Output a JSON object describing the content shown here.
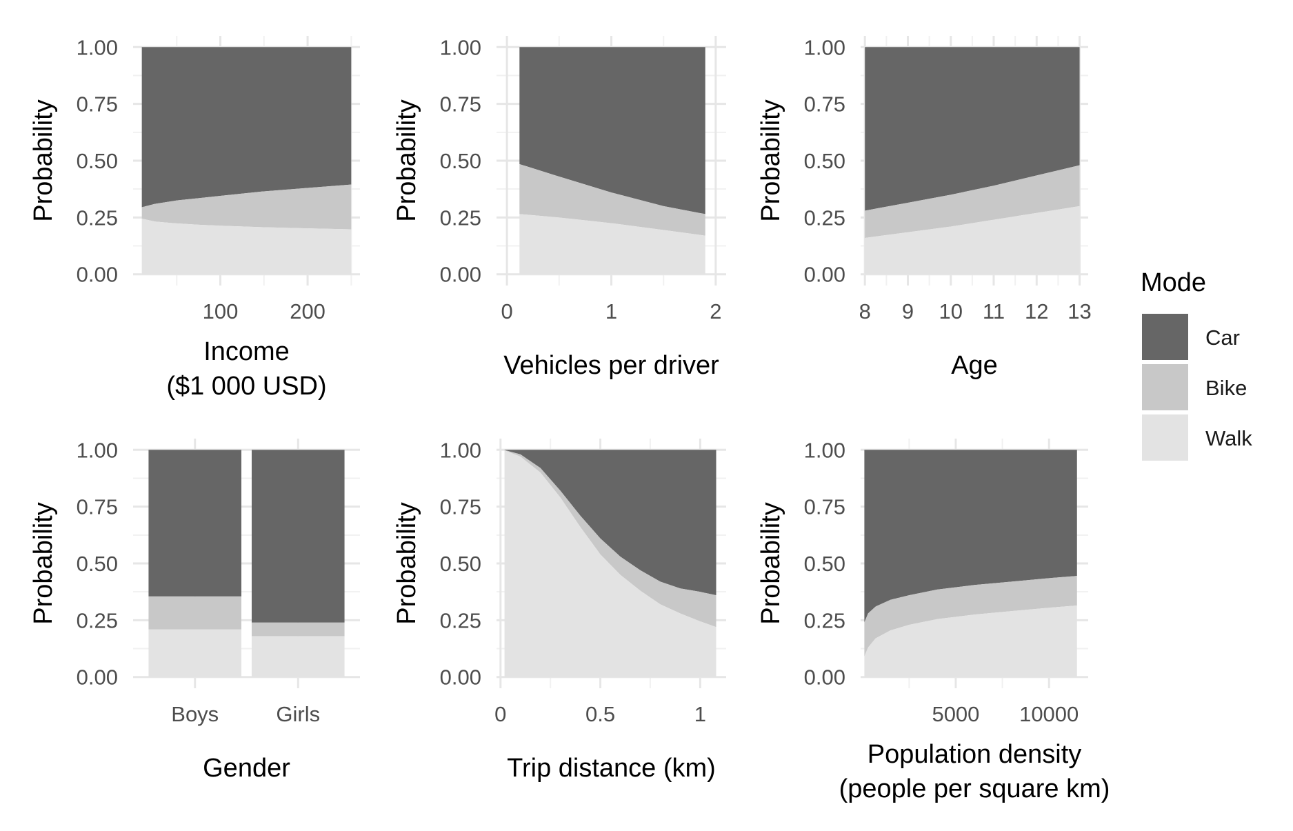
{
  "colors": {
    "Car": "#666666",
    "Bike": "#c8c8c8",
    "Walk": "#e3e3e3",
    "grid_major": "#e6e6e6",
    "grid_minor": "#f1f1f1"
  },
  "legend": {
    "title": "Mode",
    "items": [
      {
        "mode": "Car",
        "label": "Car"
      },
      {
        "mode": "Bike",
        "label": "Bike"
      },
      {
        "mode": "Walk",
        "label": "Walk"
      }
    ]
  },
  "chart_data": [
    {
      "id": "income",
      "type": "area",
      "ylabel": "Probability",
      "xlabel": [
        "Income",
        "($1 000 USD)"
      ],
      "xlim": [
        0,
        260
      ],
      "ylim": [
        0,
        1
      ],
      "x_ticks": [
        100,
        200
      ],
      "x_tick_labels": [
        "100",
        "200"
      ],
      "y_ticks": [
        0,
        0.25,
        0.5,
        0.75,
        1
      ],
      "y_tick_labels": [
        "0.00",
        "0.25",
        "0.50",
        "0.75",
        "1.00"
      ],
      "x": [
        10,
        25,
        50,
        75,
        100,
        150,
        200,
        250
      ],
      "walk": [
        0.245,
        0.232,
        0.224,
        0.218,
        0.214,
        0.207,
        0.202,
        0.198
      ],
      "walk_bike": [
        0.295,
        0.31,
        0.325,
        0.335,
        0.345,
        0.365,
        0.38,
        0.395
      ]
    },
    {
      "id": "vehicles",
      "type": "area",
      "ylabel": "Probability",
      "xlabel": [
        "Vehicles per driver"
      ],
      "xlim": [
        -0.1,
        2.1
      ],
      "ylim": [
        0,
        1
      ],
      "x_ticks": [
        0,
        1,
        2
      ],
      "x_tick_labels": [
        "0",
        "1",
        "2"
      ],
      "y_ticks": [
        0,
        0.25,
        0.5,
        0.75,
        1
      ],
      "y_tick_labels": [
        "0.00",
        "0.25",
        "0.50",
        "0.75",
        "1.00"
      ],
      "x": [
        0.12,
        0.5,
        1.0,
        1.5,
        1.9
      ],
      "walk": [
        0.265,
        0.25,
        0.225,
        0.195,
        0.17
      ],
      "walk_bike": [
        0.485,
        0.43,
        0.36,
        0.3,
        0.265
      ]
    },
    {
      "id": "age",
      "type": "area",
      "ylabel": "Probability",
      "xlabel": [
        "Age"
      ],
      "xlim": [
        7.9,
        13.2
      ],
      "ylim": [
        0,
        1
      ],
      "x_ticks": [
        8,
        9,
        10,
        11,
        12,
        13
      ],
      "x_tick_labels": [
        "8",
        "9",
        "10",
        "11",
        "12",
        "13"
      ],
      "y_ticks": [
        0,
        0.25,
        0.5,
        0.75,
        1
      ],
      "y_tick_labels": [
        "0.00",
        "0.25",
        "0.50",
        "0.75",
        "1.00"
      ],
      "x": [
        8,
        9,
        10,
        11,
        12,
        13
      ],
      "walk": [
        0.16,
        0.185,
        0.21,
        0.24,
        0.27,
        0.3
      ],
      "walk_bike": [
        0.28,
        0.315,
        0.35,
        0.39,
        0.435,
        0.48
      ]
    },
    {
      "id": "gender",
      "type": "bar",
      "ylabel": "Probability",
      "xlabel": [
        "Gender"
      ],
      "categories": [
        "Boys",
        "Girls"
      ],
      "ylim": [
        0,
        1
      ],
      "y_ticks": [
        0,
        0.25,
        0.5,
        0.75,
        1
      ],
      "y_tick_labels": [
        "0.00",
        "0.25",
        "0.50",
        "0.75",
        "1.00"
      ],
      "series": [
        {
          "mode": "Walk",
          "values": [
            0.21,
            0.18
          ]
        },
        {
          "mode": "Bike",
          "values": [
            0.145,
            0.06
          ]
        },
        {
          "mode": "Car",
          "values": [
            0.645,
            0.76
          ]
        }
      ]
    },
    {
      "id": "distance",
      "type": "area",
      "ylabel": "Probability",
      "xlabel": [
        "Trip distance (km)"
      ],
      "xlim": [
        -0.02,
        1.13
      ],
      "ylim": [
        0,
        1
      ],
      "x_ticks": [
        0,
        0.5,
        1
      ],
      "x_tick_labels": [
        "0",
        "0.5",
        "1"
      ],
      "y_ticks": [
        0,
        0.25,
        0.5,
        0.75,
        1
      ],
      "y_tick_labels": [
        "0.00",
        "0.25",
        "0.50",
        "0.75",
        "1.00"
      ],
      "x": [
        0.02,
        0.1,
        0.2,
        0.3,
        0.4,
        0.5,
        0.6,
        0.7,
        0.8,
        0.9,
        1.0,
        1.08
      ],
      "walk": [
        0.998,
        0.97,
        0.9,
        0.79,
        0.66,
        0.54,
        0.45,
        0.38,
        0.32,
        0.28,
        0.245,
        0.22
      ],
      "walk_bike": [
        0.999,
        0.98,
        0.92,
        0.82,
        0.71,
        0.61,
        0.53,
        0.47,
        0.42,
        0.39,
        0.375,
        0.36
      ]
    },
    {
      "id": "density",
      "type": "area",
      "ylabel": "Probability",
      "xlabel": [
        "Population density",
        "(people per square km)"
      ],
      "xlim": [
        -100,
        12100
      ],
      "ylim": [
        0,
        1
      ],
      "x_ticks": [
        5000,
        10000
      ],
      "x_tick_labels": [
        "5000",
        "10000"
      ],
      "y_ticks": [
        0,
        0.25,
        0.5,
        0.75,
        1
      ],
      "y_tick_labels": [
        "0.00",
        "0.25",
        "0.50",
        "0.75",
        "1.00"
      ],
      "x": [
        100,
        300,
        700,
        1500,
        2500,
        4000,
        6000,
        8000,
        10000,
        11500
      ],
      "walk": [
        0.09,
        0.13,
        0.17,
        0.205,
        0.23,
        0.255,
        0.275,
        0.29,
        0.305,
        0.315
      ],
      "walk_bike": [
        0.24,
        0.28,
        0.31,
        0.34,
        0.36,
        0.385,
        0.405,
        0.42,
        0.435,
        0.445
      ]
    }
  ]
}
